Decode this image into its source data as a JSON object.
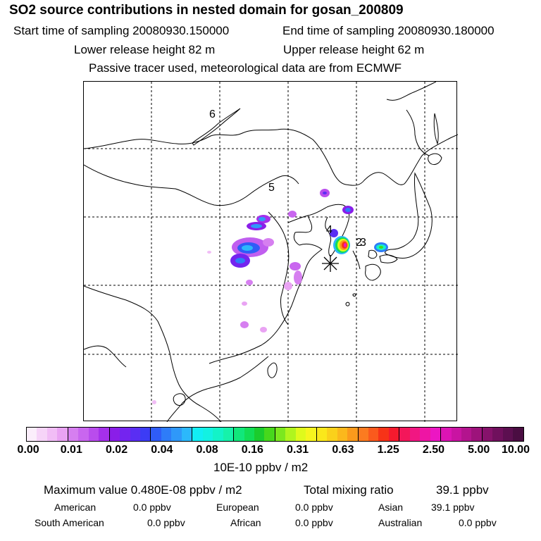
{
  "header": {
    "title": "SO2 source contributions in nested domain for gosan_200809",
    "start_time": "Start time of sampling 20080930.150000",
    "end_time": "End time of sampling 20080930.180000",
    "lower_release": "Lower release height   82 m",
    "upper_release": "Upper release height   62 m",
    "tracer_note": "Passive tracer used, meteorological data are from ECMWF"
  },
  "map": {
    "region_labels": [
      "6",
      "5",
      "4",
      "2",
      "3"
    ],
    "receptor_marker": "asterisk-icon"
  },
  "colorbar": {
    "tick_labels": [
      "0.00",
      "0.01",
      "0.02",
      "0.04",
      "0.08",
      "0.16",
      "0.31",
      "0.63",
      "1.25",
      "2.50",
      "5.00",
      "10.00"
    ],
    "colors": [
      "#fbeefb",
      "#f6d4f8",
      "#f1bdf6",
      "#e9a3f3",
      "#d67ff0",
      "#c966ef",
      "#b94ced",
      "#a530eb",
      "#8a1ee8",
      "#7424ef",
      "#5a2ef3",
      "#3c3cf5",
      "#2f5cf7",
      "#2e7cf8",
      "#2f98f9",
      "#2cb8fb",
      "#12eef4",
      "#13f1e2",
      "#13f3c8",
      "#16f2aa",
      "#11e77b",
      "#12dd55",
      "#1bcc2d",
      "#47d81c",
      "#7be81f",
      "#b0f51e",
      "#dffa1c",
      "#f7f51e",
      "#fae81b",
      "#fad11b",
      "#fbb81c",
      "#fb9a1c",
      "#fb7b20",
      "#fa5a1d",
      "#f73318",
      "#f51a2e",
      "#f3175a",
      "#f11782",
      "#ee15a4",
      "#ec16c3",
      "#dc14b4",
      "#c914a2",
      "#b3148e",
      "#9d137b",
      "#86126b",
      "#70105d",
      "#5c0f50",
      "#4a0d42"
    ],
    "unit_label": "10E-10 ppbv / m2"
  },
  "summary": {
    "max_label": "Maximum value  0.480E-08 ppbv / m2",
    "total_label": "Total mixing ratio",
    "total_value": "39.1 ppbv",
    "sources": [
      {
        "name": "American",
        "value": "0.0 ppbv"
      },
      {
        "name": "European",
        "value": "0.0 ppbv"
      },
      {
        "name": "Asian",
        "value": "39.1 ppbv"
      },
      {
        "name": "South American",
        "value": "0.0 ppbv"
      },
      {
        "name": "African",
        "value": "0.0 ppbv"
      },
      {
        "name": "Australian",
        "value": "0.0 ppbv"
      }
    ]
  }
}
